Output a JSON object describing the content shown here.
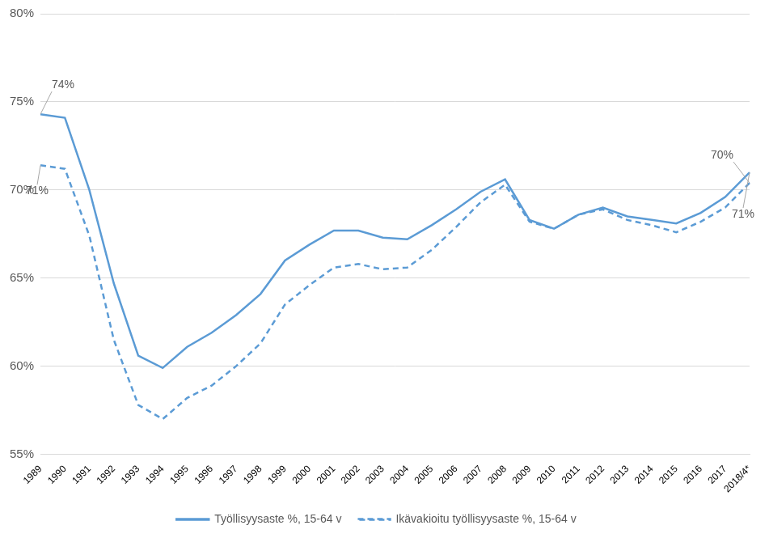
{
  "chart_data": {
    "type": "line",
    "categories": [
      "1989",
      "1990",
      "1991",
      "1992",
      "1993",
      "1994",
      "1995",
      "1996",
      "1997",
      "1998",
      "1999",
      "2000",
      "2001",
      "2002",
      "2003",
      "2004",
      "2005",
      "2006",
      "2007",
      "2008",
      "2009",
      "2010",
      "2011",
      "2012",
      "2013",
      "2014",
      "2015",
      "2016",
      "2017",
      "2018/4*"
    ],
    "series": [
      {
        "name": "Työllisyysaste %, 15-64 v",
        "color": "#5b9bd5",
        "line_style": "solid",
        "values": [
          74.3,
          74.1,
          70.0,
          64.7,
          60.6,
          59.9,
          61.1,
          61.9,
          62.9,
          64.1,
          66.0,
          66.9,
          67.7,
          67.7,
          67.3,
          67.2,
          68.0,
          68.9,
          69.9,
          70.6,
          68.3,
          67.8,
          68.6,
          69.0,
          68.5,
          68.3,
          68.1,
          68.7,
          69.6,
          71.0
        ]
      },
      {
        "name": "Ikävakioitu työllisyysaste %, 15-64 v",
        "color": "#5b9bd5",
        "line_style": "dashed",
        "values": [
          71.4,
          71.2,
          67.4,
          61.5,
          57.8,
          57.0,
          58.2,
          58.9,
          60.0,
          61.3,
          63.5,
          64.6,
          65.6,
          65.8,
          65.5,
          65.6,
          66.6,
          67.9,
          69.3,
          70.3,
          68.2,
          67.8,
          68.6,
          68.9,
          68.3,
          68.0,
          67.6,
          68.2,
          69.0,
          70.4
        ]
      }
    ],
    "ylim": [
      55,
      80
    ],
    "yticks": [
      {
        "value": 55,
        "label": "55%"
      },
      {
        "value": 60,
        "label": "60%"
      },
      {
        "value": 65,
        "label": "65%"
      },
      {
        "value": 70,
        "label": "70%"
      },
      {
        "value": 75,
        "label": "75%"
      },
      {
        "value": 80,
        "label": "80%"
      }
    ],
    "grid": true,
    "legend": "bottom",
    "annotations": [
      {
        "text": "74%",
        "x": "1989",
        "y": 74.3
      },
      {
        "text": "71%",
        "x": "1989",
        "y": 71.4
      },
      {
        "text": "70%",
        "x": "2018/4*",
        "y": 70.4
      },
      {
        "text": "71%",
        "x": "2018/4*",
        "y": 71.0
      }
    ]
  }
}
